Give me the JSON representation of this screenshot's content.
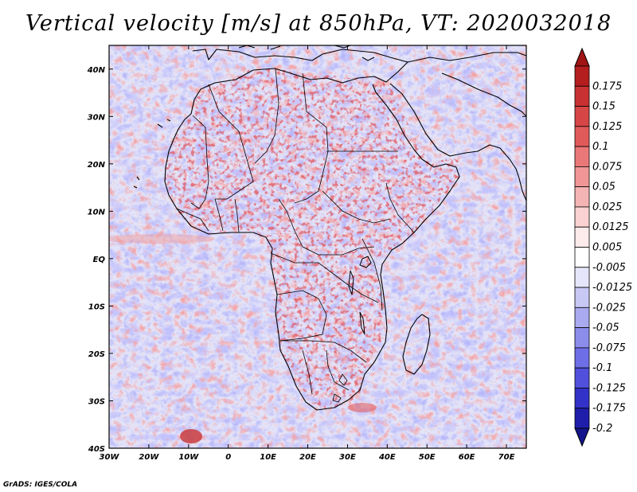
{
  "title": "Vertical velocity [m/s] at 850hPa, VT: 2020032018",
  "footer": "GrADS: IGES/COLA",
  "map": {
    "lon_range": [
      -30,
      75
    ],
    "lat_range": [
      -40,
      45
    ],
    "lat_ticks": [
      {
        "value": 40,
        "label": "40N"
      },
      {
        "value": 30,
        "label": "30N"
      },
      {
        "value": 20,
        "label": "20N"
      },
      {
        "value": 10,
        "label": "10N"
      },
      {
        "value": 0,
        "label": "EQ"
      },
      {
        "value": -10,
        "label": "10S"
      },
      {
        "value": -20,
        "label": "20S"
      },
      {
        "value": -30,
        "label": "30S"
      },
      {
        "value": -40,
        "label": "40S"
      }
    ],
    "lon_ticks": [
      {
        "value": -30,
        "label": "30W"
      },
      {
        "value": -20,
        "label": "20W"
      },
      {
        "value": -10,
        "label": "10W"
      },
      {
        "value": 0,
        "label": "0"
      },
      {
        "value": 10,
        "label": "10E"
      },
      {
        "value": 20,
        "label": "20E"
      },
      {
        "value": 30,
        "label": "30E"
      },
      {
        "value": 40,
        "label": "40E"
      },
      {
        "value": 50,
        "label": "50E"
      },
      {
        "value": 60,
        "label": "60E"
      },
      {
        "value": 70,
        "label": "70E"
      }
    ]
  },
  "colorbar": {
    "levels": [
      {
        "label": "0.175",
        "color": "#b41e1e"
      },
      {
        "label": "0.15",
        "color": "#c83232"
      },
      {
        "label": "0.125",
        "color": "#d74646"
      },
      {
        "label": "0.1",
        "color": "#e15a5a"
      },
      {
        "label": "0.075",
        "color": "#eb7878"
      },
      {
        "label": "0.05",
        "color": "#f09696"
      },
      {
        "label": "0.025",
        "color": "#f5b4b4"
      },
      {
        "label": "0.0125",
        "color": "#fad2d2"
      },
      {
        "label": "0.005",
        "color": "#fdeaea"
      },
      {
        "label": "-0.005",
        "color": "#ffffff"
      },
      {
        "label": "-0.0125",
        "color": "#e6e6fa"
      },
      {
        "label": "-0.025",
        "color": "#c8c8f5"
      },
      {
        "label": "-0.05",
        "color": "#aaaaf0"
      },
      {
        "label": "-0.075",
        "color": "#8c8ceb"
      },
      {
        "label": "-0.1",
        "color": "#6e6ee6"
      },
      {
        "label": "-0.125",
        "color": "#5050dc"
      },
      {
        "label": "-0.175",
        "color": "#3232c8"
      },
      {
        "label": "-0.2",
        "color": "#1e1eaa"
      }
    ],
    "top_color": "#a01414",
    "bottom_color": "#14148c"
  }
}
